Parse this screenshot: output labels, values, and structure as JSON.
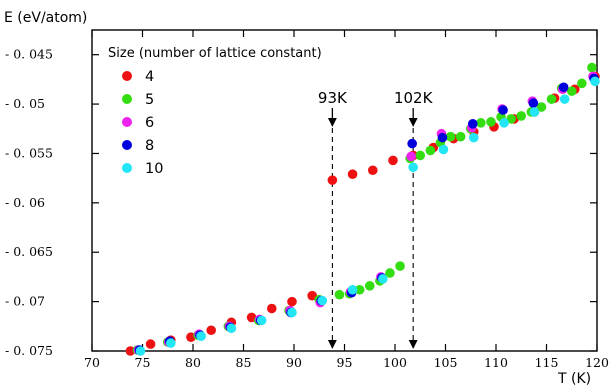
{
  "chart_data": {
    "type": "scatter",
    "ylabel": "E (eV/atom)",
    "xlabel": "T (K)",
    "xlim": [
      70,
      120
    ],
    "ylim": [
      -0.075,
      -0.0425
    ],
    "xticks": [
      70,
      75,
      80,
      85,
      90,
      95,
      100,
      105,
      110,
      115,
      120
    ],
    "yticks": [
      -0.045,
      -0.05,
      -0.055,
      -0.06,
      -0.065,
      -0.07,
      -0.075
    ],
    "ytick_labels": [
      "- 0. 045",
      "- 0. 05",
      "- 0. 055",
      "- 0. 06",
      "- 0. 065",
      "- 0. 07",
      "- 0. 075"
    ],
    "grid": false,
    "legend": {
      "title": "Size (number of lattice constant)",
      "position": "top-left"
    },
    "annotations": [
      {
        "text": "93K",
        "x": 93.8
      },
      {
        "text": "102K",
        "x": 101.8
      }
    ],
    "series": [
      {
        "name": "4",
        "color": "#ee1111",
        "points": [
          [
            73.8,
            -0.075
          ],
          [
            75.8,
            -0.0743
          ],
          [
            77.8,
            -0.0739
          ],
          [
            79.8,
            -0.0736
          ],
          [
            81.8,
            -0.0729
          ],
          [
            83.8,
            -0.0721
          ],
          [
            85.8,
            -0.0716
          ],
          [
            87.8,
            -0.0707
          ],
          [
            89.8,
            -0.07
          ],
          [
            91.8,
            -0.0694
          ],
          [
            93.8,
            -0.0577
          ],
          [
            95.8,
            -0.0571
          ],
          [
            97.8,
            -0.0567
          ],
          [
            99.8,
            -0.0557
          ],
          [
            101.8,
            -0.0552
          ],
          [
            103.8,
            -0.0544
          ],
          [
            105.8,
            -0.0535
          ],
          [
            107.8,
            -0.0528
          ],
          [
            109.8,
            -0.0523
          ],
          [
            111.8,
            -0.0515
          ],
          [
            113.8,
            -0.0508
          ],
          [
            115.8,
            -0.0494
          ],
          [
            117.8,
            -0.0485
          ],
          [
            119.8,
            -0.0472
          ]
        ]
      },
      {
        "name": "5",
        "color": "#33dd11",
        "points": [
          [
            74.5,
            -0.0749
          ],
          [
            77.5,
            -0.0741
          ],
          [
            80.5,
            -0.0734
          ],
          [
            83.5,
            -0.0725
          ],
          [
            86.5,
            -0.0719
          ],
          [
            89.5,
            -0.0709
          ],
          [
            92.5,
            -0.0698
          ],
          [
            94.5,
            -0.0693
          ],
          [
            95.5,
            -0.0692
          ],
          [
            96.5,
            -0.0688
          ],
          [
            97.5,
            -0.0684
          ],
          [
            98.5,
            -0.0679
          ],
          [
            99.5,
            -0.0671
          ],
          [
            100.5,
            -0.0664
          ],
          [
            101.5,
            -0.0555
          ],
          [
            102.5,
            -0.0552
          ],
          [
            103.5,
            -0.0547
          ],
          [
            104.5,
            -0.0539
          ],
          [
            105.5,
            -0.0533
          ],
          [
            106.5,
            -0.0533
          ],
          [
            107.5,
            -0.0525
          ],
          [
            108.5,
            -0.0519
          ],
          [
            109.5,
            -0.0518
          ],
          [
            110.5,
            -0.0513
          ],
          [
            111.5,
            -0.0515
          ],
          [
            112.5,
            -0.0512
          ],
          [
            113.5,
            -0.0508
          ],
          [
            114.5,
            -0.0503
          ],
          [
            115.5,
            -0.0495
          ],
          [
            116.5,
            -0.0484
          ],
          [
            117.5,
            -0.0487
          ],
          [
            118.5,
            -0.0479
          ],
          [
            119.5,
            -0.0463
          ]
        ]
      },
      {
        "name": "6",
        "color": "#ee22ee",
        "points": [
          [
            74.6,
            -0.0749
          ],
          [
            77.6,
            -0.0741
          ],
          [
            80.6,
            -0.0733
          ],
          [
            83.6,
            -0.0725
          ],
          [
            86.6,
            -0.0718
          ],
          [
            89.6,
            -0.0709
          ],
          [
            92.6,
            -0.0701
          ],
          [
            95.6,
            -0.069
          ],
          [
            98.6,
            -0.0675
          ],
          [
            101.6,
            -0.0553
          ],
          [
            104.6,
            -0.053
          ],
          [
            107.6,
            -0.0524
          ],
          [
            110.6,
            -0.0505
          ],
          [
            113.6,
            -0.0497
          ],
          [
            116.6,
            -0.0485
          ],
          [
            119.6,
            -0.0472
          ]
        ]
      },
      {
        "name": "8",
        "color": "#0000dd",
        "points": [
          [
            74.7,
            -0.0749
          ],
          [
            77.7,
            -0.074
          ],
          [
            80.7,
            -0.0734
          ],
          [
            83.7,
            -0.0726
          ],
          [
            86.7,
            -0.0719
          ],
          [
            89.7,
            -0.0711
          ],
          [
            92.7,
            -0.0699
          ],
          [
            95.7,
            -0.0691
          ],
          [
            98.7,
            -0.0676
          ],
          [
            101.7,
            -0.054
          ],
          [
            104.7,
            -0.0534
          ],
          [
            107.7,
            -0.052
          ],
          [
            110.7,
            -0.0506
          ],
          [
            113.7,
            -0.0499
          ],
          [
            116.7,
            -0.0483
          ],
          [
            119.7,
            -0.0474
          ]
        ]
      },
      {
        "name": "10",
        "color": "#22e6f6",
        "points": [
          [
            74.8,
            -0.075
          ],
          [
            77.8,
            -0.0742
          ],
          [
            80.8,
            -0.0735
          ],
          [
            83.8,
            -0.0727
          ],
          [
            86.8,
            -0.0719
          ],
          [
            89.8,
            -0.0711
          ],
          [
            92.8,
            -0.0699
          ],
          [
            95.8,
            -0.0688
          ],
          [
            98.8,
            -0.0677
          ],
          [
            101.8,
            -0.0564
          ],
          [
            104.8,
            -0.0546
          ],
          [
            107.8,
            -0.0534
          ],
          [
            110.8,
            -0.0519
          ],
          [
            113.8,
            -0.0508
          ],
          [
            116.8,
            -0.0495
          ],
          [
            119.8,
            -0.0477
          ]
        ]
      }
    ]
  }
}
